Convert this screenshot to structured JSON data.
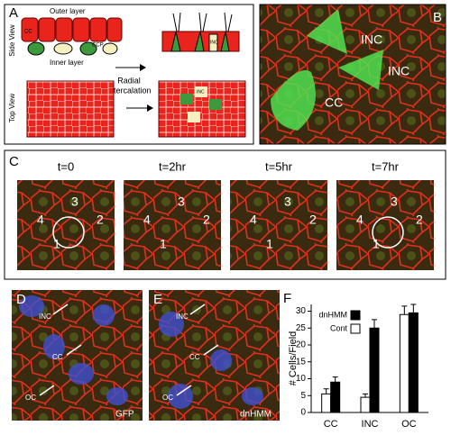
{
  "panel_a": {
    "label": "A",
    "outer_layer": "Outer layer",
    "inner_layer": "Inner layer",
    "side_view": "Side View",
    "top_view": "Top View",
    "arrow_text": [
      "Radial",
      "Intercalation"
    ],
    "cell_labels": [
      "CC",
      "CCP",
      "INC",
      "INC"
    ]
  },
  "panel_b": {
    "label": "B",
    "labels": [
      "INC",
      "INC",
      "CC"
    ]
  },
  "panel_c": {
    "label": "C",
    "frames": [
      {
        "time": "t=0",
        "numbers": [
          "3",
          "4",
          "2",
          "1"
        ]
      },
      {
        "time": "t=2hr",
        "numbers": [
          "3",
          "4",
          "2",
          "1"
        ]
      },
      {
        "time": "t=5hr",
        "numbers": [
          "3",
          "4",
          "2",
          "1"
        ]
      },
      {
        "time": "t=7hr",
        "numbers": [
          "3",
          "4",
          "2",
          "1"
        ]
      }
    ]
  },
  "panel_d": {
    "label": "D",
    "labels": [
      "INC",
      "CC",
      "OC"
    ],
    "condition": "GFP"
  },
  "panel_e": {
    "label": "E",
    "labels": [
      "INC",
      "CC",
      "OC"
    ],
    "condition": "dnHMM"
  },
  "chart_data": {
    "type": "bar",
    "label": "F",
    "y_label": "# Cells/Field",
    "categories": [
      "CC",
      "INC",
      "OC"
    ],
    "series": [
      {
        "name": "Cont",
        "color": "#ffffff",
        "values": [
          5.5,
          4.5,
          29
        ],
        "errors": [
          1.5,
          1,
          2.5
        ]
      },
      {
        "name": "dnHMM",
        "color": "#000000",
        "values": [
          9,
          25,
          29.5
        ],
        "errors": [
          1.5,
          2.5,
          2.5
        ]
      }
    ],
    "ylim": [
      0,
      32
    ],
    "yticks": [
      0,
      5,
      10,
      15,
      20,
      25,
      30
    ],
    "legend": "upper left"
  }
}
